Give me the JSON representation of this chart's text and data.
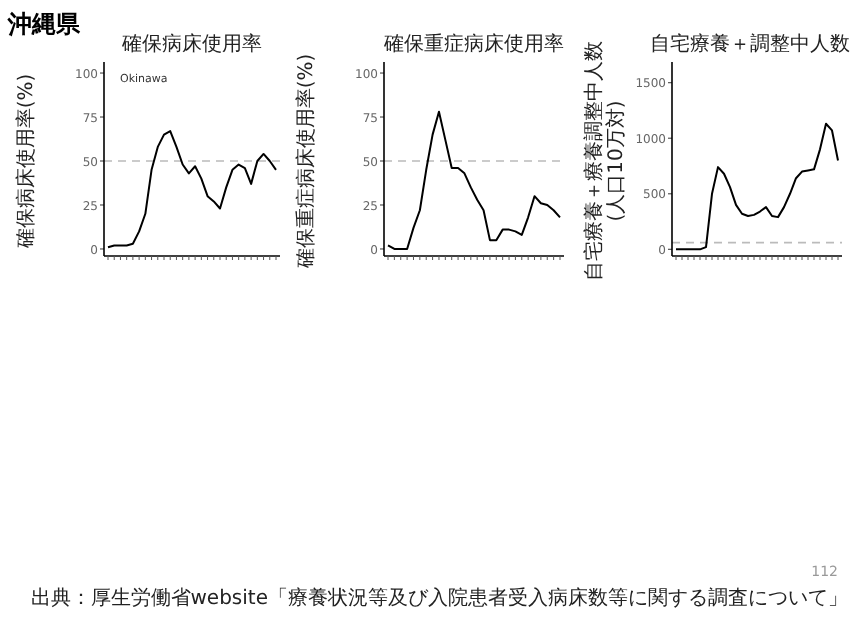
{
  "chart_data": [
    {
      "type": "line",
      "title": "確保病床使用率",
      "ylabel": "確保病床使用率(%)",
      "categories": [
        null,
        null,
        null,
        null,
        null,
        null,
        null,
        null,
        null,
        null,
        null,
        null,
        null,
        null,
        null,
        null,
        null,
        null,
        null,
        null,
        null,
        null,
        null,
        null,
        null,
        null,
        null,
        null
      ],
      "series": [
        {
          "color": "#000000",
          "values": [
            1,
            2,
            2,
            2,
            3,
            10,
            20,
            45,
            58,
            65,
            67,
            58,
            48,
            43,
            47,
            40,
            30,
            27,
            23,
            35,
            45,
            48,
            46,
            37,
            50,
            54,
            50,
            45
          ]
        }
      ],
      "ylim": [
        -4,
        104
      ],
      "yticks": [
        0,
        25,
        50,
        75,
        100
      ],
      "ref_lines": [
        {
          "axis": "y",
          "value": 50,
          "color": "#bbbbbb",
          "line_style": "dashed"
        }
      ],
      "grid": false,
      "annotations": [
        "Okinawa"
      ]
    },
    {
      "type": "line",
      "title": "確保重症病床使用率",
      "ylabel": "確保重症病床使用率(%)",
      "categories": [
        null,
        null,
        null,
        null,
        null,
        null,
        null,
        null,
        null,
        null,
        null,
        null,
        null,
        null,
        null,
        null,
        null,
        null,
        null,
        null,
        null,
        null,
        null,
        null,
        null,
        null,
        null,
        null
      ],
      "series": [
        {
          "color": "#000000",
          "values": [
            2,
            0,
            0,
            0,
            12,
            22,
            45,
            65,
            78,
            62,
            46,
            46,
            43,
            35,
            28,
            22,
            5,
            5,
            11,
            11,
            10,
            8,
            18,
            30,
            26,
            25,
            22,
            18
          ]
        }
      ],
      "ylim": [
        -4,
        104
      ],
      "yticks": [
        0,
        25,
        50,
        75,
        100
      ],
      "ref_lines": [
        {
          "axis": "y",
          "value": 50,
          "color": "#bbbbbb",
          "line_style": "dashed"
        }
      ],
      "grid": false
    },
    {
      "type": "line",
      "title": "自宅療養＋調整中人数",
      "ylabel": "自宅療養＋療養調整中人数(人口10万対)",
      "categories": [
        null,
        null,
        null,
        null,
        null,
        null,
        null,
        null,
        null,
        null,
        null,
        null,
        null,
        null,
        null,
        null,
        null,
        null,
        null,
        null,
        null,
        null,
        null,
        null,
        null,
        null,
        null,
        null
      ],
      "series": [
        {
          "color": "#000000",
          "values": [
            0,
            0,
            0,
            0,
            0,
            20,
            500,
            740,
            680,
            560,
            400,
            320,
            300,
            310,
            340,
            380,
            300,
            290,
            380,
            500,
            640,
            700,
            710,
            720,
            900,
            1130,
            1070,
            800
          ]
        }
      ],
      "ylim": [
        -60,
        1650
      ],
      "yticks": [
        0,
        500,
        1000,
        1500
      ],
      "ref_lines": [
        {
          "axis": "y",
          "value": 60,
          "color": "#bbbbbb",
          "line_style": "dashed"
        }
      ],
      "grid": false
    },
    {
      "type": "other",
      "title": "沖縄県",
      "annotations": [
        "112",
        "出典：厚生労働省website「療養状況等及び入院患者受入病床数等に関する調査について」"
      ]
    }
  ]
}
